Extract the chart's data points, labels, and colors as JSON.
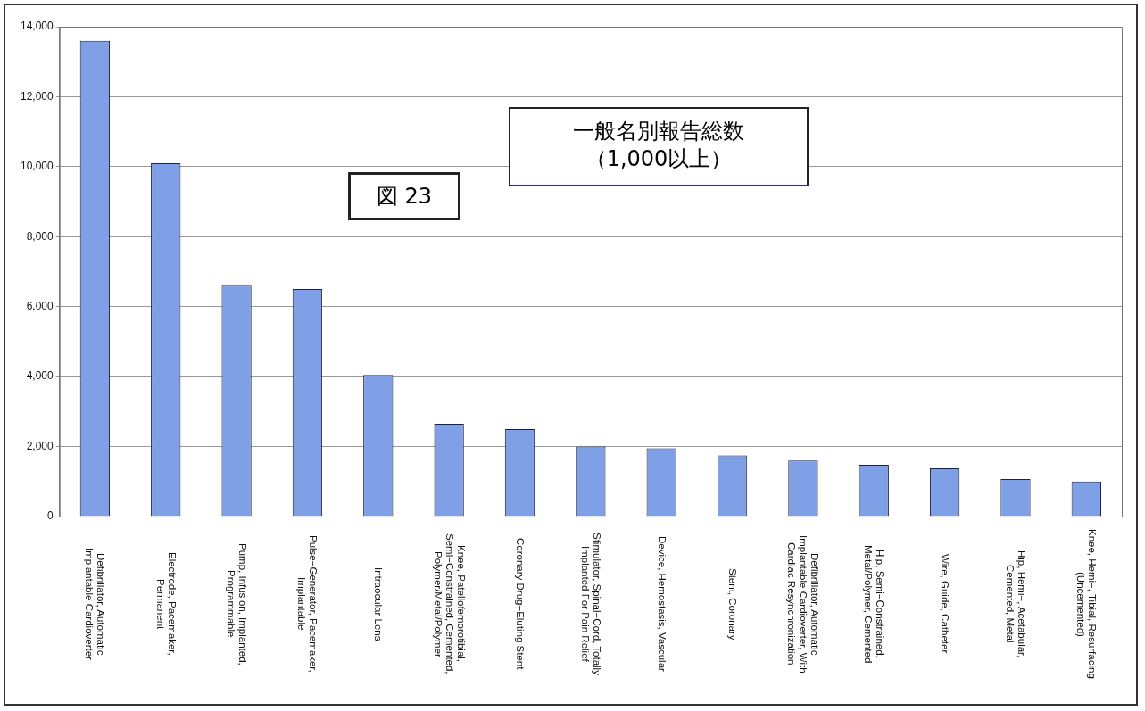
{
  "chart_data": {
    "type": "bar",
    "title": "一般名別報告総数",
    "subtitle": "（1,000以上）",
    "annotations": [
      "図 23"
    ],
    "categories": [
      "Defibrillator, Automatic Implantable Cardioverter",
      "Electrode, Pacemaker, Permanent",
      "Pump, Infusion, Implanted, Programmable",
      "Pulse−Generator, Pacemaker, Implantable",
      "Intraocular Lens",
      "Knee, Patellofemorotibial, Semi−Constrained, Cemented, Polymer/Metal/Polymer",
      "Coronary Drug−Eluting Stent",
      "Stimulator, Spinal−Cord, Totally Implanted For Pain Relief",
      "Device, Hemostasis, Vascular",
      "Stent, Coronary",
      "Defibrillator, Automatic Implantable Cardioverter, With Cardiac Resynchronization",
      "Hip, Semi−Constrained, Metal/Polymer, Cemented",
      "Wire, Guide, Catheter",
      "Hip, Hemi−, Acetabular, Cemented, Metal",
      "Knee, Hemi−, Tibial, Resurfacing (Uncemented)"
    ],
    "values": [
      13600,
      10100,
      6600,
      6500,
      4050,
      2650,
      2500,
      2000,
      1950,
      1750,
      1600,
      1480,
      1380,
      1070,
      1000
    ],
    "color": "#7f9fe6",
    "ylim": [
      0,
      14000
    ],
    "yticks": [
      0,
      {
        "value": 2000,
        "label": "2,000"
      },
      {
        "value": 4000,
        "label": "4,000"
      },
      {
        "value": 6000,
        "label": "6,000"
      },
      {
        "value": 8000,
        "label": "8,000"
      },
      {
        "value": 10000,
        "label": "10,000"
      },
      {
        "value": 12000,
        "label": "12,000"
      },
      {
        "value": 14000,
        "label": "14,000"
      }
    ],
    "grid": "y",
    "legend": false
  }
}
